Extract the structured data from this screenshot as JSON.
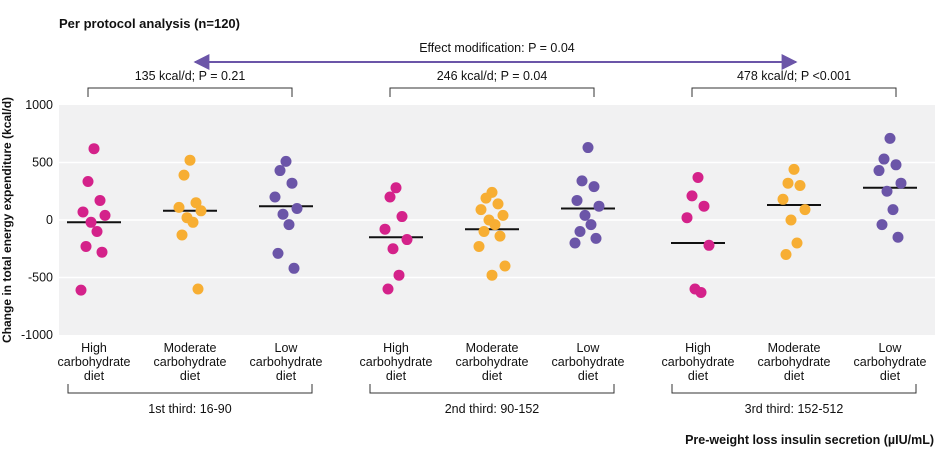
{
  "chart_data": {
    "type": "scatter",
    "title": "Per protocol analysis (n=120)",
    "ylabel": "Change in total energy expenditure (kcal/d)",
    "xlabel": "Pre-weight loss insulin secretion (µIU/mL)",
    "ylim": [
      -1000,
      1000
    ],
    "yticks": [
      1000,
      500,
      0,
      -500,
      -1000
    ],
    "grid": true,
    "effect_modification": "Effect modification: P = 0.04",
    "categories": [
      "High carbohydrate diet",
      "Moderate carbohydrate diet",
      "Low carbohydrate diet"
    ],
    "diet_labels": [
      [
        "High",
        "carbohydrate",
        "diet"
      ],
      [
        "Moderate",
        "carbohydrate",
        "diet"
      ],
      [
        "Low",
        "carbohydrate",
        "diet"
      ]
    ],
    "colors": {
      "high": "#d4228a",
      "moderate": "#f7ae33",
      "low": "#6b55a8"
    },
    "groups": [
      {
        "name": "1st third: 16-90",
        "comparison": "135 kcal/d; P = 0.21",
        "series": [
          {
            "diet": "high",
            "mean": -20,
            "values": [
              620,
              335,
              170,
              70,
              40,
              -20,
              -100,
              -230,
              -280,
              -610
            ]
          },
          {
            "diet": "moderate",
            "mean": 80,
            "values": [
              520,
              390,
              150,
              110,
              80,
              20,
              -20,
              -130,
              -600
            ]
          },
          {
            "diet": "low",
            "mean": 120,
            "values": [
              510,
              430,
              320,
              200,
              100,
              50,
              -40,
              -290,
              -420
            ]
          }
        ]
      },
      {
        "name": "2nd third: 90-152",
        "comparison": "246 kcal/d; P = 0.04",
        "series": [
          {
            "diet": "high",
            "mean": -150,
            "values": [
              280,
              200,
              30,
              -80,
              -170,
              -250,
              -480,
              -600
            ]
          },
          {
            "diet": "moderate",
            "mean": -80,
            "values": [
              240,
              190,
              140,
              90,
              40,
              0,
              -40,
              -100,
              -140,
              -230,
              -400,
              -480
            ]
          },
          {
            "diet": "low",
            "mean": 100,
            "values": [
              630,
              340,
              290,
              170,
              120,
              40,
              -40,
              -100,
              -160,
              -200
            ]
          }
        ]
      },
      {
        "name": "3rd third: 152-512",
        "comparison": "478 kcal/d; P <0.001",
        "series": [
          {
            "diet": "high",
            "mean": -200,
            "values": [
              370,
              210,
              120,
              20,
              -220,
              -600,
              -630
            ]
          },
          {
            "diet": "moderate",
            "mean": 130,
            "values": [
              440,
              320,
              300,
              180,
              90,
              0,
              -200,
              -300
            ]
          },
          {
            "diet": "low",
            "mean": 280,
            "values": [
              710,
              530,
              480,
              430,
              320,
              250,
              90,
              -40,
              -150
            ]
          }
        ]
      }
    ]
  }
}
